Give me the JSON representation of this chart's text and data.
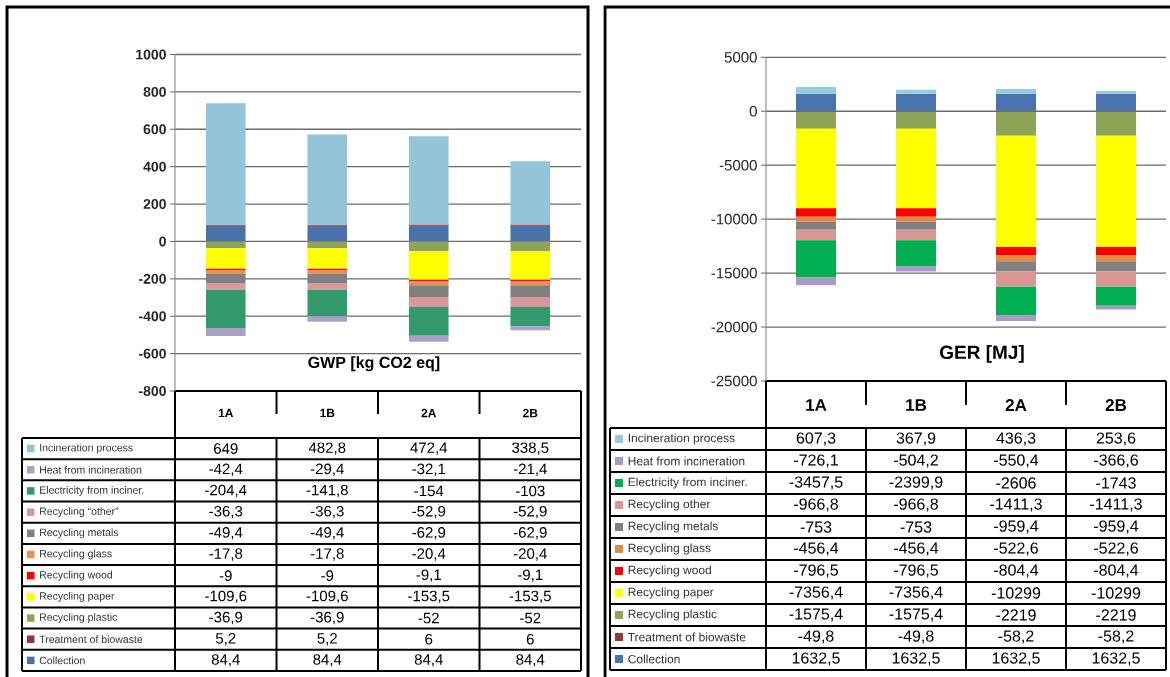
{
  "chart_data": [
    {
      "type": "bar",
      "title": "GWP [kg CO2 eq]",
      "categories": [
        "1A",
        "1B",
        "2A",
        "2B"
      ],
      "stacked": true,
      "ylim": [
        -800,
        1000
      ],
      "yticks": [
        -800,
        -600,
        -400,
        -200,
        0,
        200,
        400,
        600,
        800,
        1000
      ],
      "grid": "y",
      "legend": "bottom",
      "series": [
        {
          "name": "Collection",
          "color": "#4a72ab",
          "values": [
            84.4,
            84.4,
            84.4,
            84.4
          ],
          "value_labels": [
            "84,4",
            "84,4",
            "84,4",
            "84,4"
          ]
        },
        {
          "name": "Treatment of biowaste",
          "color": "#953735",
          "values": [
            5.2,
            5.2,
            6,
            6
          ],
          "value_labels": [
            "5,2",
            "5,2",
            "6",
            "6"
          ]
        },
        {
          "name": "Recycling plastic",
          "color": "#8fa45a",
          "values": [
            -36.9,
            -36.9,
            -52,
            -52
          ],
          "value_labels": [
            "-36,9",
            "-36,9",
            "-52",
            "-52"
          ]
        },
        {
          "name": "Recycling paper",
          "color": "#ffff00",
          "values": [
            -109.6,
            -109.6,
            -153.5,
            -153.5
          ],
          "value_labels": [
            "-109,6",
            "-109,6",
            "-153,5",
            "-153,5"
          ]
        },
        {
          "name": "Recycling wood",
          "color": "#ff0000",
          "values": [
            -9,
            -9,
            -9.1,
            -9.1
          ],
          "value_labels": [
            "-9",
            "-9",
            "-9,1",
            "-9,1"
          ]
        },
        {
          "name": "Recycling glass",
          "color": "#e8904f",
          "values": [
            -17.8,
            -17.8,
            -20.4,
            -20.4
          ],
          "value_labels": [
            "-17,8",
            "-17,8",
            "-20,4",
            "-20,4"
          ]
        },
        {
          "name": "Recycling metals",
          "color": "#808080",
          "values": [
            -49.4,
            -49.4,
            -62.9,
            -62.9
          ],
          "value_labels": [
            "-49,4",
            "-49,4",
            "-62,9",
            "-62,9"
          ]
        },
        {
          "name": "Recycling “other”",
          "color": "#d9999a",
          "values": [
            -36.3,
            -36.3,
            -52.9,
            -52.9
          ],
          "value_labels": [
            "-36,3",
            "-36,3",
            "-52,9",
            "-52,9"
          ]
        },
        {
          "name": "Electricity from inciner.",
          "color": "#339b6b",
          "values": [
            -204.4,
            -141.8,
            -154,
            -103
          ],
          "value_labels": [
            "-204,4",
            "-141,8",
            "-154",
            "-103"
          ]
        },
        {
          "name": "Heat from incineration",
          "color": "#a9a1c6",
          "values": [
            -42.4,
            -29.4,
            -32.1,
            -21.4
          ],
          "value_labels": [
            "-42,4",
            "-29,4",
            "-32,1",
            "-21,4"
          ]
        },
        {
          "name": "Incineration process",
          "color": "#93c4d8",
          "values": [
            649,
            482.8,
            472.4,
            338.5
          ],
          "value_labels": [
            "649",
            "482,8",
            "472,4",
            "338,5"
          ]
        }
      ]
    },
    {
      "type": "bar",
      "title": "GER [MJ]",
      "categories": [
        "1A",
        "1B",
        "2A",
        "2B"
      ],
      "stacked": true,
      "ylim": [
        -25000,
        5000
      ],
      "yticks": [
        -25000,
        -20000,
        -15000,
        -10000,
        -5000,
        0,
        5000
      ],
      "grid": "y",
      "legend": "bottom",
      "series": [
        {
          "name": "Collection",
          "color": "#4a74b0",
          "values": [
            1632.5,
            1632.5,
            1632.5,
            1632.5
          ],
          "value_labels": [
            "1632,5",
            "1632,5",
            "1632,5",
            "1632,5"
          ]
        },
        {
          "name": "Treatment of biowaste",
          "color": "#953735",
          "values": [
            -49.8,
            -49.8,
            -58.2,
            -58.2
          ],
          "value_labels": [
            "-49,8",
            "-49,8",
            "-58,2",
            "-58,2"
          ]
        },
        {
          "name": "Recycling plastic",
          "color": "#8ea557",
          "values": [
            -1575.4,
            -1575.4,
            -2219,
            -2219
          ],
          "value_labels": [
            "-1575,4",
            "-1575,4",
            "-2219",
            "-2219"
          ]
        },
        {
          "name": "Recycling paper",
          "color": "#ffff00",
          "values": [
            -7356.4,
            -7356.4,
            -10299,
            -10299
          ],
          "value_labels": [
            "-7356,4",
            "-7356,4",
            "-10299",
            "-10299"
          ]
        },
        {
          "name": "Recycling wood",
          "color": "#ff0000",
          "values": [
            -796.5,
            -796.5,
            -804.4,
            -804.4
          ],
          "value_labels": [
            "-796,5",
            "-796,5",
            "-804,4",
            "-804,4"
          ]
        },
        {
          "name": "Recycling glass",
          "color": "#e58a44",
          "values": [
            -456.4,
            -456.4,
            -522.6,
            -522.6
          ],
          "value_labels": [
            "-456,4",
            "-456,4",
            "-522,6",
            "-522,6"
          ]
        },
        {
          "name": "Recycling metals",
          "color": "#808080",
          "values": [
            -753,
            -753,
            -959.4,
            -959.4
          ],
          "value_labels": [
            "-753",
            "-753",
            "-959,4",
            "-959,4"
          ]
        },
        {
          "name": "Recycling other",
          "color": "#d99694",
          "values": [
            -966.8,
            -966.8,
            -1411.3,
            -1411.3
          ],
          "value_labels": [
            "-966,8",
            "-966,8",
            "-1411,3",
            "-1411,3"
          ]
        },
        {
          "name": "Electricity from inciner.",
          "color": "#00b050",
          "values": [
            -3457.5,
            -2399.9,
            -2606,
            -1743
          ],
          "value_labels": [
            "-3457,5",
            "-2399,9",
            "-2606",
            "-1743"
          ]
        },
        {
          "name": "Heat from incineration",
          "color": "#a99bc8",
          "values": [
            -726.1,
            -504.2,
            -550.4,
            -366.6
          ],
          "value_labels": [
            "-726,1",
            "-504,2",
            "-550,4",
            "-366,6"
          ]
        },
        {
          "name": "Incineration process",
          "color": "#93cddd",
          "values": [
            607.3,
            367.9,
            436.3,
            253.6
          ],
          "value_labels": [
            "607,3",
            "367,9",
            "436,3",
            "253,6"
          ]
        }
      ]
    }
  ]
}
